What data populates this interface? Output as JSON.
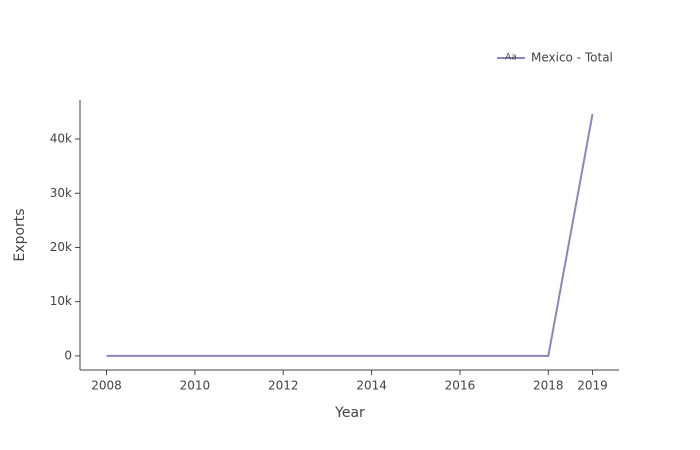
{
  "chart_data": {
    "type": "line",
    "x": [
      2008,
      2009,
      2010,
      2011,
      2012,
      2013,
      2014,
      2015,
      2016,
      2017,
      2018,
      2019
    ],
    "series": [
      {
        "name": "Mexico - Total",
        "color": "#8c84bc",
        "values": [
          0,
          0,
          0,
          0,
          0,
          0,
          0,
          0,
          0,
          0,
          0,
          44600
        ]
      }
    ],
    "legend_marker_text": "Aa",
    "xlabel": "Year",
    "ylabel": "Exports",
    "xlim": [
      2007.4,
      2019.6
    ],
    "xticks": [
      2008,
      2010,
      2012,
      2014,
      2016,
      2018,
      2019
    ],
    "ylim": [
      -2600,
      47200
    ],
    "yticks": [
      0,
      {
        "value": 10000,
        "label": "10k"
      },
      {
        "value": 20000,
        "label": "20k"
      },
      {
        "value": 30000,
        "label": "30k"
      },
      {
        "value": 40000,
        "label": "40k"
      }
    ],
    "legend": "top-right"
  }
}
